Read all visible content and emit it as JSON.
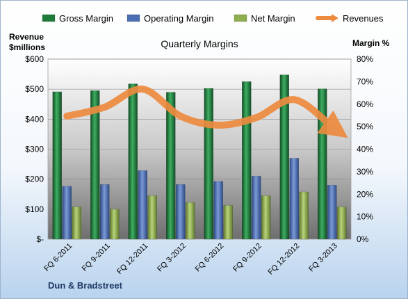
{
  "chart_data": {
    "type": "bar",
    "title": "Quarterly Margins",
    "source": "Dun & Bradstreet",
    "y_left_label": [
      "Revenue",
      "$millions"
    ],
    "y_right_label": "Margin %",
    "y_left_ticks": [
      "$-",
      "$100",
      "$200",
      "$300",
      "$400",
      "$500",
      "$600"
    ],
    "y_right_ticks": [
      "0%",
      "10%",
      "20%",
      "30%",
      "40%",
      "50%",
      "60%",
      "70%",
      "80%"
    ],
    "y_left_range": [
      0,
      600
    ],
    "y_right_range": [
      0,
      80
    ],
    "legend_position": "top",
    "categories": [
      "FQ 6-2011",
      "FQ 9-2011",
      "FQ 12-2011",
      "FQ 3-2012",
      "FQ 6-2012",
      "FQ 9-2012",
      "FQ 12-2012",
      "FQ 3-2013"
    ],
    "series": [
      {
        "name": "Gross Margin",
        "axis": "right",
        "unit": "%",
        "color": "#1e7b3a",
        "values": [
          65.5,
          66.0,
          69.0,
          65.3,
          67.0,
          70.0,
          73.0,
          66.8
        ]
      },
      {
        "name": "Operating Margin",
        "axis": "right",
        "unit": "%",
        "color": "#4a6fb3",
        "values": [
          23.5,
          24.3,
          30.5,
          24.3,
          25.7,
          28.0,
          36.0,
          24.0
        ]
      },
      {
        "name": "Net Margin",
        "axis": "right",
        "unit": "%",
        "color": "#8fae4d",
        "values": [
          14.3,
          13.3,
          19.3,
          16.3,
          15.0,
          19.3,
          21.0,
          14.3
        ]
      },
      {
        "name": "Revenues",
        "axis": "left",
        "unit": "$ millions",
        "type": "line",
        "color": "#ed8b3f",
        "values": [
          410,
          440,
          500,
          410,
          380,
          405,
          465,
          375
        ]
      }
    ]
  }
}
